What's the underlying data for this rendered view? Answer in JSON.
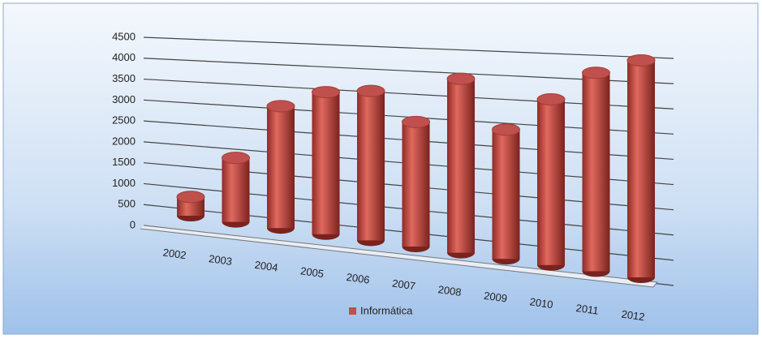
{
  "chart_data": {
    "type": "bar3d",
    "categories": [
      "2002",
      "2003",
      "2004",
      "2005",
      "2006",
      "2007",
      "2008",
      "2009",
      "2010",
      "2011",
      "2012"
    ],
    "series": [
      {
        "name": "Informática",
        "color": "#c0504d",
        "values": [
          450,
          1500,
          2800,
          3200,
          3300,
          2700,
          3700,
          2700,
          3400,
          4000,
          4300
        ]
      }
    ],
    "ylim": [
      0,
      4500
    ],
    "yticks": [
      0,
      500,
      1000,
      1500,
      2000,
      2500,
      3000,
      3500,
      4000,
      4500
    ],
    "grid": true,
    "legend": "bottom"
  }
}
